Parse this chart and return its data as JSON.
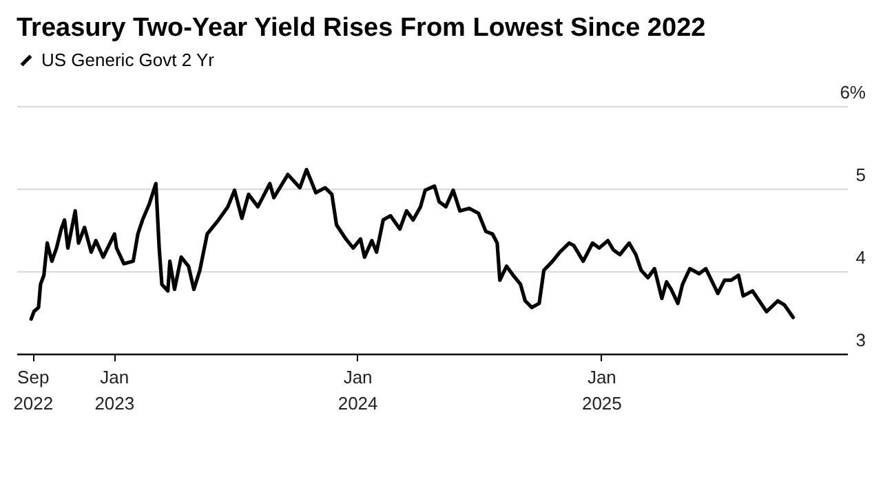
{
  "chart_data": {
    "type": "line",
    "title": "Treasury Two-Year Yield Rises From Lowest Since 2022",
    "xlim": [
      "2022-08-08",
      "2026-01-05"
    ],
    "xticks": [
      {
        "value": "2022-09-01",
        "label": "Sep\n2022"
      },
      {
        "value": "2023-01-01",
        "label": "Jan\n2023"
      },
      {
        "value": "2024-01-01",
        "label": "Jan\n2024"
      },
      {
        "value": "2025-01-01",
        "label": "Jan\n2025"
      }
    ],
    "ylim": [
      3,
      6
    ],
    "yticks": [
      3,
      4,
      5,
      {
        "value": 6,
        "label": "6%"
      }
    ],
    "grid": "y",
    "legend": "top left",
    "line_style": "solid",
    "marker": "none",
    "x": [
      "2022-08-30",
      "2022-09-03",
      "2022-09-10",
      "2022-09-13",
      "2022-09-18",
      "2022-09-23",
      "2022-09-30",
      "2022-10-07",
      "2022-10-14",
      "2022-10-19",
      "2022-10-24",
      "2022-11-04",
      "2022-11-09",
      "2022-11-18",
      "2022-11-28",
      "2022-12-05",
      "2022-12-16",
      "2023-01-02",
      "2023-01-05",
      "2023-01-16",
      "2023-01-30",
      "2023-02-06",
      "2023-02-13",
      "2023-02-23",
      "2023-03-05",
      "2023-03-10",
      "2023-03-14",
      "2023-03-23",
      "2023-03-26",
      "2023-04-02",
      "2023-04-12",
      "2023-04-23",
      "2023-05-01",
      "2023-05-10",
      "2023-05-21",
      "2023-06-07",
      "2023-06-21",
      "2023-07-01",
      "2023-07-12",
      "2023-07-22",
      "2023-08-05",
      "2023-08-23",
      "2023-08-29",
      "2023-09-19",
      "2023-10-07",
      "2023-10-17",
      "2023-10-31",
      "2023-11-14",
      "2023-11-24",
      "2023-12-01",
      "2023-12-15",
      "2023-12-26",
      "2024-01-06",
      "2024-01-12",
      "2024-01-23",
      "2024-01-30",
      "2024-02-09",
      "2024-02-20",
      "2024-03-05",
      "2024-03-15",
      "2024-03-25",
      "2024-04-05",
      "2024-04-12",
      "2024-04-26",
      "2024-05-03",
      "2024-05-13",
      "2024-05-24",
      "2024-06-03",
      "2024-06-17",
      "2024-07-01",
      "2024-07-12",
      "2024-07-22",
      "2024-07-29",
      "2024-08-02",
      "2024-08-12",
      "2024-08-22",
      "2024-09-02",
      "2024-09-09",
      "2024-09-19",
      "2024-09-30",
      "2024-10-07",
      "2024-10-20",
      "2024-10-31",
      "2024-11-14",
      "2024-11-21",
      "2024-12-05",
      "2024-12-19",
      "2024-12-29",
      "2025-01-11",
      "2025-01-19",
      "2025-01-29",
      "2025-02-12",
      "2025-02-22",
      "2025-03-02",
      "2025-03-12",
      "2025-03-22",
      "2025-04-02",
      "2025-04-09",
      "2025-04-16",
      "2025-04-26",
      "2025-05-03",
      "2025-05-14",
      "2025-05-28",
      "2025-06-07",
      "2025-06-25",
      "2025-07-05",
      "2025-07-15",
      "2025-07-26",
      "2025-08-02",
      "2025-08-16",
      "2025-09-06",
      "2025-09-23",
      "2025-10-03",
      "2025-10-16"
    ],
    "series": [
      {
        "name": "US Generic Govt 2 Yr",
        "color": "#000000",
        "values": [
          3.42,
          3.51,
          3.56,
          3.84,
          3.95,
          4.34,
          4.12,
          4.28,
          4.51,
          4.62,
          4.28,
          4.73,
          4.34,
          4.53,
          4.23,
          4.37,
          4.17,
          4.45,
          4.28,
          4.09,
          4.12,
          4.45,
          4.62,
          4.81,
          5.06,
          4.28,
          3.84,
          3.76,
          4.12,
          3.78,
          4.17,
          4.06,
          3.78,
          4.01,
          4.45,
          4.62,
          4.78,
          4.98,
          4.64,
          4.93,
          4.78,
          5.06,
          4.89,
          5.17,
          5.01,
          5.23,
          4.95,
          5.01,
          4.93,
          4.56,
          4.39,
          4.28,
          4.39,
          4.17,
          4.37,
          4.23,
          4.62,
          4.67,
          4.51,
          4.73,
          4.62,
          4.78,
          4.98,
          5.03,
          4.84,
          4.78,
          4.98,
          4.73,
          4.76,
          4.7,
          4.48,
          4.45,
          4.34,
          3.89,
          4.06,
          3.95,
          3.84,
          3.64,
          3.56,
          3.61,
          4.01,
          4.12,
          4.23,
          4.34,
          4.31,
          4.12,
          4.34,
          4.28,
          4.37,
          4.26,
          4.2,
          4.34,
          4.2,
          4.01,
          3.92,
          4.03,
          3.67,
          3.87,
          3.78,
          3.61,
          3.84,
          4.03,
          3.97,
          4.03,
          3.73,
          3.89,
          3.89,
          3.95,
          3.7,
          3.76,
          3.51,
          3.64,
          3.59,
          3.44
        ]
      }
    ]
  }
}
